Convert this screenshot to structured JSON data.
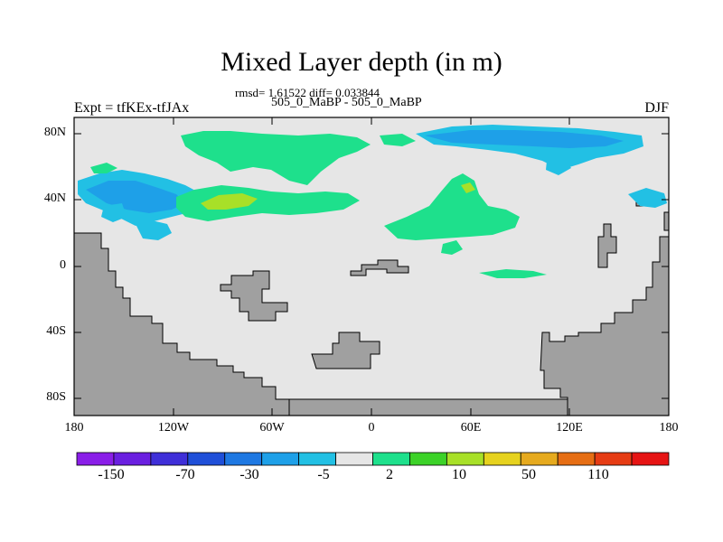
{
  "title": "Mixed Layer depth (in m)",
  "stats": "rmsd= 1.61522 diff= 0.033844",
  "subtitle": "505_0_MaBP - 505_0_MaBP",
  "left_label": "Expt = tfKEx-tfJAx",
  "right_label": "DJF",
  "y_ticks": [
    "80N",
    "40N",
    "0",
    "40S",
    "80S"
  ],
  "x_ticks": [
    "180",
    "120W",
    "60W",
    "0",
    "60E",
    "120E",
    "180"
  ],
  "colorbar": {
    "colors": [
      "#8a1ee8",
      "#6a1fe0",
      "#3f2fd8",
      "#1f4fd8",
      "#1e78e2",
      "#1ea0e8",
      "#22c0e4",
      "#e6e6e6",
      "#1ee08c",
      "#3cd228",
      "#a8e028",
      "#e6d21e",
      "#e6aa1e",
      "#e66e14",
      "#e63c14",
      "#e61414"
    ],
    "labels": [
      "-150",
      "-70",
      "-30",
      "-5",
      "2",
      "10",
      "50",
      "110"
    ]
  },
  "map_colors": {
    "land": "#a0a0a0",
    "ocean": "#e6e6e6",
    "light_blue": "#22c0e4",
    "mid_blue": "#1ea0e8",
    "green": "#1ee08c",
    "lime": "#a8e028"
  }
}
